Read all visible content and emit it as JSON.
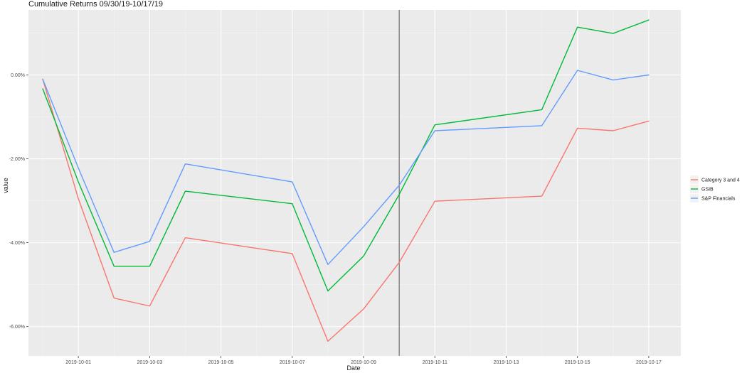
{
  "chart_data": {
    "type": "line",
    "title": "Cumulative Returns 09/30/19-10/17/19",
    "xlabel": "Date",
    "ylabel": "value",
    "x": [
      "2019-09-30",
      "2019-10-01",
      "2019-10-02",
      "2019-10-03",
      "2019-10-04",
      "2019-10-07",
      "2019-10-08",
      "2019-10-09",
      "2019-10-10",
      "2019-10-11",
      "2019-10-14",
      "2019-10-15",
      "2019-10-16",
      "2019-10-17"
    ],
    "xlim": [
      "2019-09-29.6",
      "2019-10-17.9"
    ],
    "xticks": [
      "2019-10-01",
      "2019-10-03",
      "2019-10-05",
      "2019-10-07",
      "2019-10-09",
      "2019-10-11",
      "2019-10-13",
      "2019-10-15",
      "2019-10-17"
    ],
    "ylim": [
      -0.067,
      0.0155
    ],
    "yticks": [
      {
        "value": 0.0,
        "label": "0.00%"
      },
      {
        "value": -0.02,
        "label": "-2.00%"
      },
      {
        "value": -0.04,
        "label": "-4.00%"
      },
      {
        "value": -0.06,
        "label": "-6.00%"
      }
    ],
    "vline": "2019-10-10",
    "grid": true,
    "legend_position": "right",
    "series": [
      {
        "name": "Category 3 and 4",
        "color": "#F8766D",
        "values": [
          -0.001,
          -0.0295,
          -0.0532,
          -0.0551,
          -0.0388,
          -0.0426,
          -0.0635,
          -0.0558,
          -0.0447,
          -0.0301,
          -0.0289,
          -0.0127,
          -0.0133,
          -0.011
        ]
      },
      {
        "name": "GSIB",
        "color": "#00BA38",
        "values": [
          -0.0033,
          -0.0255,
          -0.0456,
          -0.0456,
          -0.0277,
          -0.0307,
          -0.0515,
          -0.0432,
          -0.0285,
          -0.0119,
          -0.0083,
          0.0114,
          0.0099,
          0.0131
        ]
      },
      {
        "name": "S&P Financials",
        "color": "#619CFF",
        "values": [
          -0.001,
          -0.0222,
          -0.0423,
          -0.0397,
          -0.0212,
          -0.0255,
          -0.0452,
          -0.0362,
          -0.0263,
          -0.0133,
          -0.0121,
          0.0011,
          -0.0012,
          0.0
        ]
      }
    ]
  }
}
